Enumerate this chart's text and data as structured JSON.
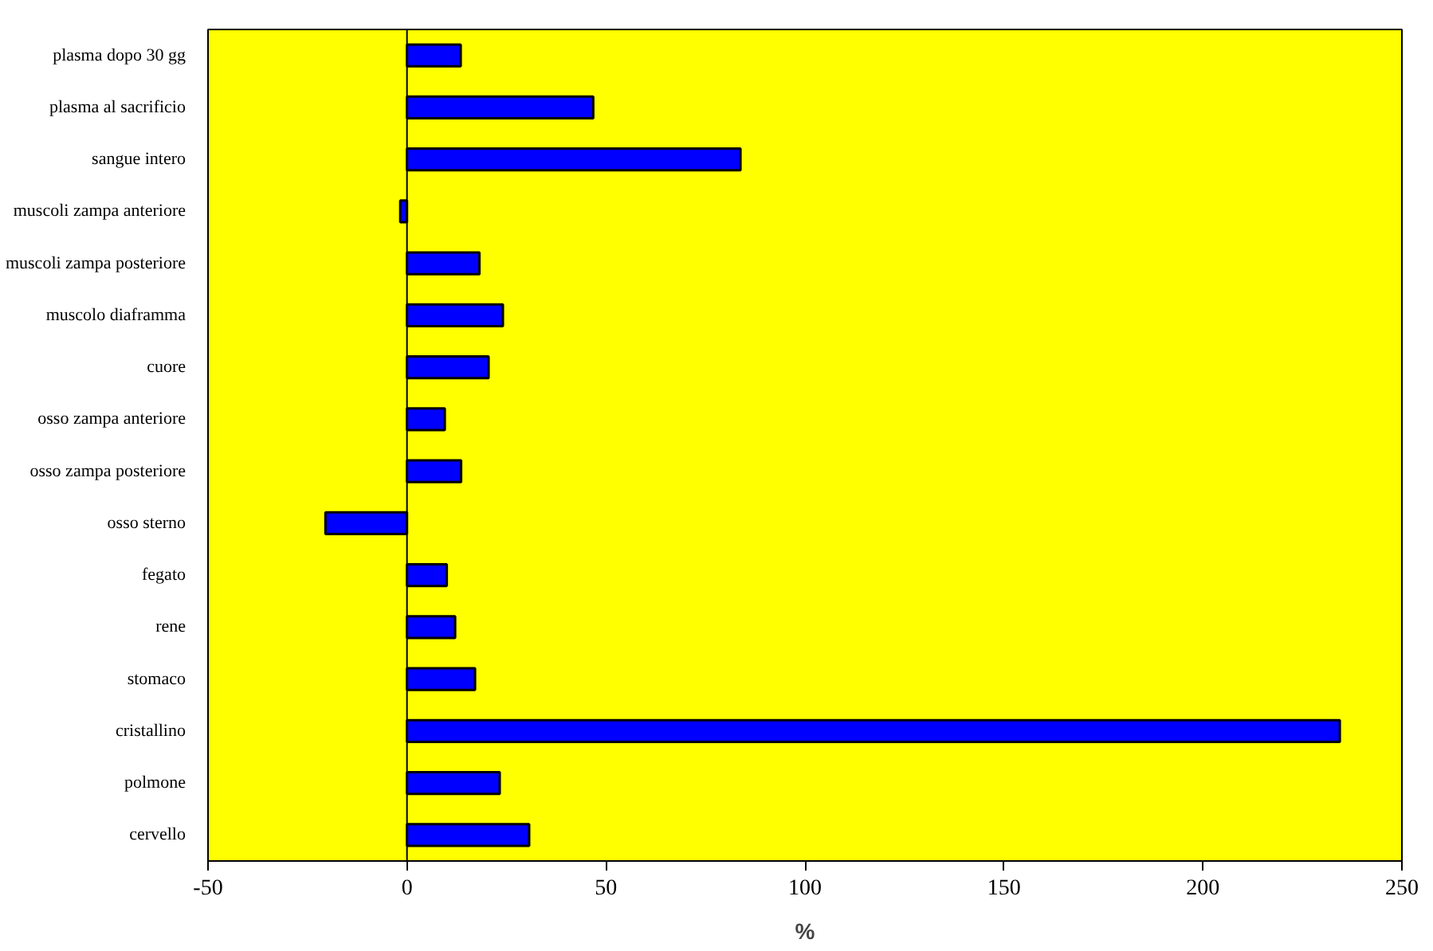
{
  "chart_data": {
    "type": "bar",
    "orientation": "horizontal",
    "xlabel": "%",
    "categories": [
      "plasma dopo 30 gg",
      "plasma al sacrificio",
      "sangue intero",
      "muscoli zampa anteriore",
      "muscoli zampa posteriore",
      "muscolo diaframma",
      "cuore",
      "osso zampa anteriore",
      "osso zampa posteriore",
      "osso sterno",
      "fegato",
      "rene",
      "stomaco",
      "cristallino",
      "polmone",
      "cervello"
    ],
    "values": [
      13.5,
      46.8,
      83.8,
      -1.7,
      18.2,
      24.1,
      20.5,
      9.5,
      13.6,
      -20.5,
      10.0,
      12.1,
      17.1,
      234.4,
      23.3,
      30.7
    ],
    "color": "#0000ff",
    "xlim": [
      -50,
      250
    ],
    "xticks": [
      -50,
      0,
      50,
      100,
      150,
      200,
      250
    ]
  }
}
